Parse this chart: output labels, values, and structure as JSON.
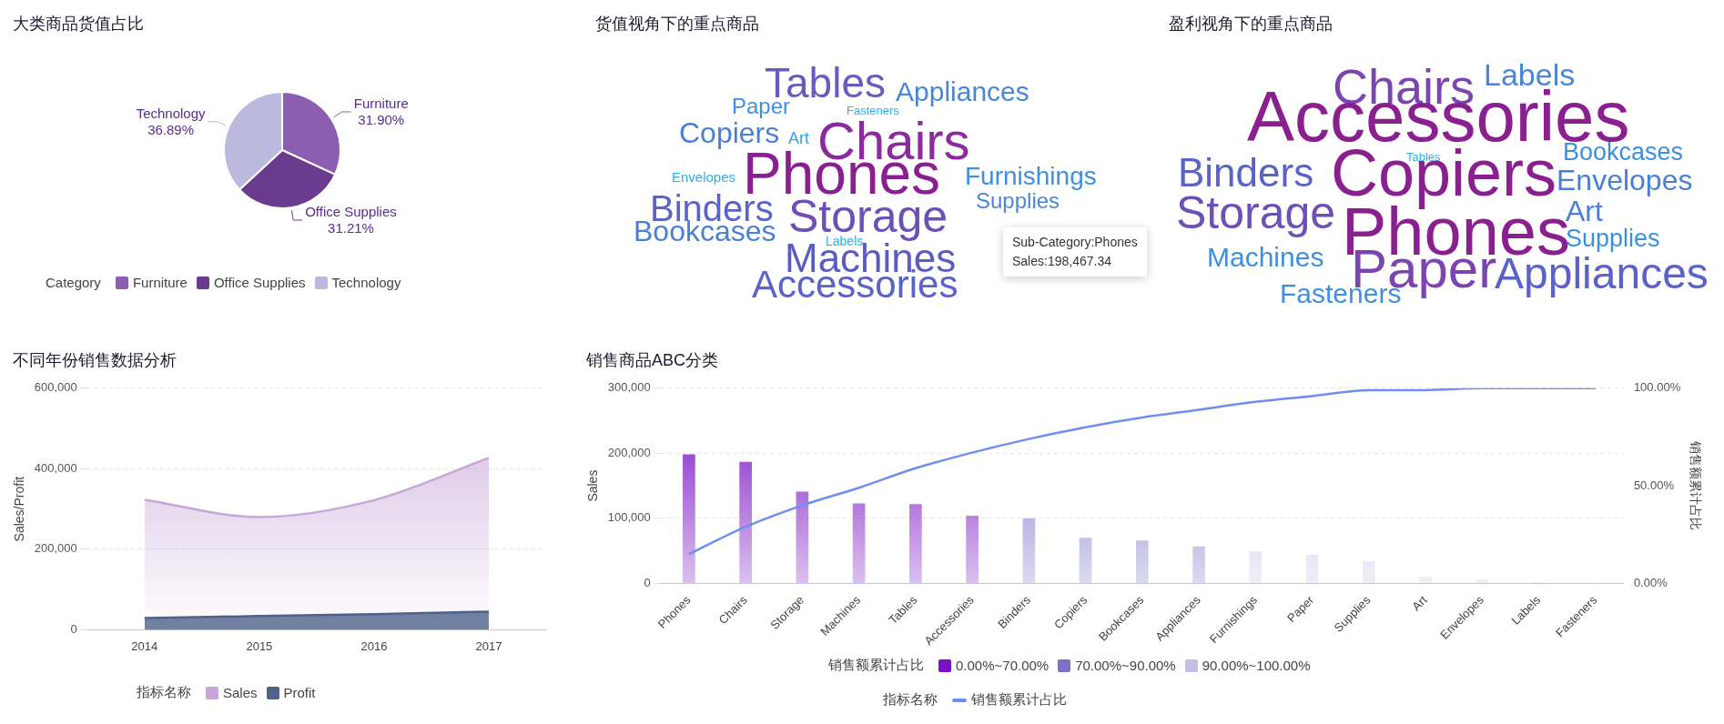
{
  "chart_data": [
    {
      "type": "pie",
      "title": "大类商品货值占比",
      "categories": [
        "Furniture",
        "Office Supplies",
        "Technology"
      ],
      "values": [
        31.9,
        31.21,
        36.89
      ],
      "colors": [
        "#8c5db1",
        "#6a3b8e",
        "#bcb9de"
      ],
      "value_labels": [
        "31.90%",
        "31.21%",
        "36.89%"
      ],
      "legend": "bottom",
      "legend_title": "Category"
    },
    {
      "type": "other",
      "title": "货值视角下的重点商品",
      "categories": [
        "Tables",
        "Appliances",
        "Paper",
        "Fasteners",
        "Copiers",
        "Chairs",
        "Art",
        "Phones",
        "Envelopes",
        "Furnishings",
        "Binders",
        "Storage",
        "Supplies",
        "Bookcases",
        "Labels",
        "Machines",
        "Accessories"
      ],
      "colors": [
        "#6a5bbf",
        "#4a86d8",
        "#3f8fe0",
        "#2bb0ee",
        "#4a7fd6",
        "#8e2aa0",
        "#3aa0ea",
        "#8a2090",
        "#2bb0ee",
        "#3f8fe0",
        "#5b62c8",
        "#6d4fb8",
        "#4a86d8",
        "#4a7fd6",
        "#2bb0ee",
        "#5a5cc2",
        "#5b62c8"
      ],
      "annotations": [
        "Sub-Category:Phones",
        "Sales:198,467.34"
      ]
    },
    {
      "type": "other",
      "title": "盈利视角下的重点商品",
      "categories": [
        "Chairs",
        "Labels",
        "Accessories",
        "Tables",
        "Bookcases",
        "Binders",
        "Copiers",
        "Envelopes",
        "Storage",
        "Art",
        "Phones",
        "Supplies",
        "Machines",
        "Paper",
        "Appliances",
        "Fasteners"
      ],
      "colors": [
        "#7b44b0",
        "#4a86d8",
        "#8a2090",
        "#2bb0ee",
        "#3f8fe0",
        "#5b62c8",
        "#8a2090",
        "#4a7fd6",
        "#6d4fb8",
        "#4a7fd6",
        "#8a2090",
        "#3f8fe0",
        "#3f8fe0",
        "#7b44b0",
        "#5b62c8",
        "#3f8fe0"
      ]
    },
    {
      "type": "area",
      "title": "不同年份销售数据分析",
      "categories": [
        "2014",
        "2015",
        "2016",
        "2017"
      ],
      "ylabel": "Sales/Profit",
      "ylim": [
        0,
        600000
      ],
      "yticks": [
        {
          "value": 0,
          "label": "0"
        },
        {
          "value": 200000,
          "label": "200,000"
        },
        {
          "value": 400000,
          "label": "400,000"
        },
        {
          "value": 600000,
          "label": "600,000"
        }
      ],
      "grid": "y",
      "marker": "none",
      "legend": "bottom",
      "legend_title": "指标名称",
      "series": [
        {
          "name": "Sales",
          "color": "#c7a6d9",
          "values": [
            323000,
            280000,
            322000,
            427000
          ]
        },
        {
          "name": "Profit",
          "color": "#4e6289",
          "values": [
            29000,
            34000,
            39000,
            45000
          ]
        }
      ]
    },
    {
      "type": "bar",
      "title": "销售商品ABC分类",
      "categories": [
        "Phones",
        "Chairs",
        "Storage",
        "Machines",
        "Tables",
        "Accessories",
        "Binders",
        "Copiers",
        "Bookcases",
        "Appliances",
        "Furnishings",
        "Paper",
        "Supplies",
        "Art",
        "Envelopes",
        "Labels",
        "Fasteners"
      ],
      "stacked": true,
      "ylabel": "Sales",
      "y2label": "销售额累计占比",
      "ylim": [
        0,
        300000
      ],
      "yticks": [
        {
          "value": 0,
          "label": "0"
        },
        {
          "value": 100000,
          "label": "100,000"
        },
        {
          "value": 200000,
          "label": "200,000"
        },
        {
          "value": 300000,
          "label": "300,000"
        }
      ],
      "y2lim": [
        0,
        100
      ],
      "y2ticks": [
        {
          "value": 0,
          "label": "0.00%"
        },
        {
          "value": 50,
          "label": "50.00%"
        },
        {
          "value": 100,
          "label": "100.00%"
        }
      ],
      "grid": "y",
      "marker": "none",
      "legend": "bottom",
      "legend_title": "销售额累计占比",
      "annotations": [
        "指标名称"
      ],
      "series": [
        {
          "name": "0.00%~70.00%",
          "color": "#7a12c4",
          "values": [
            198467.34,
            187000,
            141000,
            123000,
            122000,
            104000,
            null,
            null,
            null,
            null,
            null,
            null,
            null,
            null,
            null,
            null,
            null
          ]
        },
        {
          "name": "70.00%~90.00%",
          "color": "#7b72c6",
          "values": [
            null,
            null,
            null,
            null,
            null,
            null,
            100000,
            70000,
            66000,
            57000,
            null,
            null,
            null,
            null,
            null,
            null,
            null
          ]
        },
        {
          "name": "90.00%~100.00%",
          "color": "#c3bfe3",
          "values": [
            null,
            null,
            null,
            null,
            null,
            null,
            null,
            null,
            null,
            null,
            49000,
            44000,
            34000,
            10000,
            6000,
            2000,
            1000
          ]
        },
        {
          "name": "销售额累计占比",
          "type": "line",
          "axis": "y2",
          "color": "#6f8ff0",
          "values": [
            15,
            29,
            40,
            49,
            59,
            67,
            74,
            80,
            85,
            89,
            93,
            96,
            99,
            99,
            100,
            100,
            100
          ]
        }
      ]
    }
  ]
}
